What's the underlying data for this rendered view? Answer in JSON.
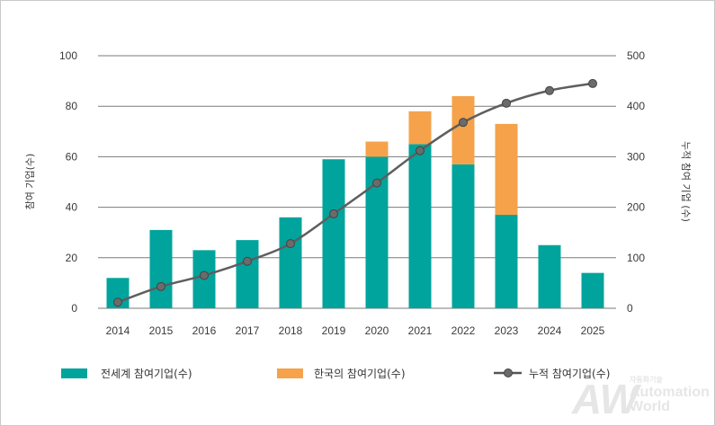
{
  "chart_data": {
    "type": "bar",
    "title": "",
    "categories": [
      "2014",
      "2015",
      "2016",
      "2017",
      "2018",
      "2019",
      "2020",
      "2021",
      "2022",
      "2023",
      "2024",
      "2025"
    ],
    "series": [
      {
        "name": "전세계 참여기업(수)",
        "kind": "bar",
        "axis": "left",
        "stack": "main",
        "color": "#00a49c",
        "values": [
          12,
          31,
          23,
          27,
          36,
          59,
          60,
          65,
          57,
          37,
          25,
          14
        ]
      },
      {
        "name": "한국의 참여기업(수)",
        "kind": "bar",
        "axis": "left",
        "stack": "main",
        "color": "#f5a24b",
        "values": [
          0,
          0,
          0,
          0,
          0,
          0,
          6,
          13,
          27,
          36,
          0,
          0
        ]
      },
      {
        "name": "누적 참여기업(수)",
        "kind": "line",
        "axis": "right",
        "color": "#666666",
        "values": [
          12,
          43,
          65,
          93,
          128,
          187,
          248,
          312,
          368,
          406,
          431,
          445
        ]
      }
    ],
    "ylabel": "참여 기업(수)",
    "y2label": "누적 참여 기업 (수)",
    "ylim": [
      0,
      100
    ],
    "y2lim": [
      0,
      500
    ],
    "yticks": [
      "0",
      "20",
      "40",
      "60",
      "80",
      "100"
    ],
    "y2ticks": [
      "0",
      "100",
      "200",
      "300",
      "400",
      "500"
    ],
    "grid": true,
    "legend_position": "bottom"
  },
  "watermark": {
    "logo": "AW",
    "small": "자동화기술",
    "line1": "Automation",
    "line2": "World"
  }
}
